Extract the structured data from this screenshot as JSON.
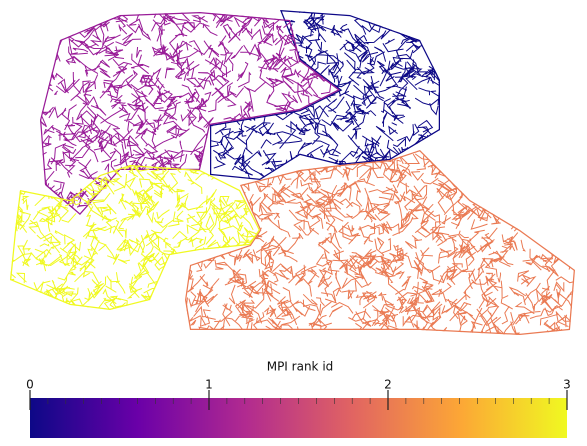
{
  "chart_data": {
    "type": "partition-map",
    "colorbar_label": "MPI rank id",
    "partitions": {
      "values": [
        0,
        1,
        2,
        3
      ]
    },
    "clim": [
      0,
      3
    ],
    "cticks": [
      0,
      1,
      2,
      3
    ],
    "colormap": [
      "#0d0887",
      "#6a00a8",
      "#b12a90",
      "#e16462",
      "#fca636",
      "#f0f921"
    ]
  }
}
